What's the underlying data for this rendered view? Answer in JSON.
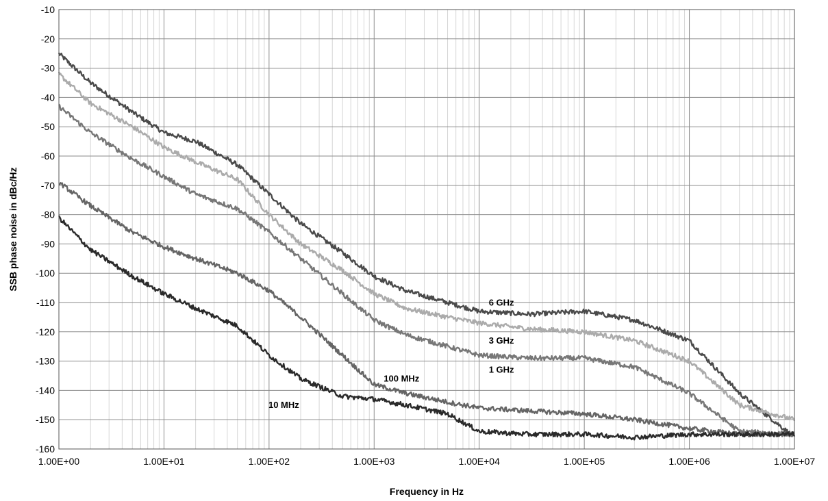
{
  "chart_data": {
    "type": "line",
    "title": "",
    "xlabel": "Frequency in Hz",
    "ylabel": "SSB phase noise in dBc/Hz",
    "x_scale": "log",
    "xlim": [
      1,
      10000000
    ],
    "ylim": [
      -160,
      -10
    ],
    "x_ticks": [
      1,
      10,
      100,
      1000,
      10000,
      100000,
      1000000,
      10000000
    ],
    "x_tick_labels": [
      "1.00E+00",
      "1.00E+01",
      "1.00E+02",
      "1.00E+03",
      "1.00E+04",
      "1.00E+05",
      "1.00E+06",
      "1.00E+07"
    ],
    "y_ticks": [
      -10,
      -20,
      -30,
      -40,
      -50,
      -60,
      -70,
      -80,
      -90,
      -100,
      -110,
      -120,
      -130,
      -140,
      -150,
      -160
    ],
    "grid": true,
    "legend": "none",
    "series": [
      {
        "name": "6 GHz",
        "color": "#4a4a4a",
        "label_at": [
          10000,
          -111
        ],
        "points": [
          [
            1,
            -25
          ],
          [
            2,
            -35
          ],
          [
            5,
            -45
          ],
          [
            10,
            -52
          ],
          [
            20,
            -55
          ],
          [
            50,
            -63
          ],
          [
            100,
            -73
          ],
          [
            200,
            -83
          ],
          [
            500,
            -93
          ],
          [
            1000,
            -101
          ],
          [
            2000,
            -106
          ],
          [
            5000,
            -110
          ],
          [
            10000,
            -113
          ],
          [
            30000,
            -114
          ],
          [
            100000,
            -113
          ],
          [
            300000,
            -116
          ],
          [
            1000000,
            -123
          ],
          [
            3000000,
            -141
          ],
          [
            10000000,
            -156
          ]
        ]
      },
      {
        "name": "3 GHz",
        "color": "#ababab",
        "label_at": [
          10000,
          -124
        ],
        "points": [
          [
            1,
            -32
          ],
          [
            2,
            -42
          ],
          [
            5,
            -50
          ],
          [
            10,
            -57
          ],
          [
            20,
            -62
          ],
          [
            50,
            -68
          ],
          [
            100,
            -80
          ],
          [
            200,
            -90
          ],
          [
            500,
            -99
          ],
          [
            1000,
            -107
          ],
          [
            2000,
            -112
          ],
          [
            5000,
            -115
          ],
          [
            10000,
            -117
          ],
          [
            30000,
            -119
          ],
          [
            100000,
            -120
          ],
          [
            300000,
            -123
          ],
          [
            1000000,
            -130
          ],
          [
            3000000,
            -145
          ],
          [
            10000000,
            -150
          ]
        ]
      },
      {
        "name": "1 GHz",
        "color": "#777777",
        "label_at": [
          10000,
          -134
        ],
        "points": [
          [
            1,
            -43
          ],
          [
            2,
            -52
          ],
          [
            5,
            -61
          ],
          [
            10,
            -67
          ],
          [
            20,
            -73
          ],
          [
            50,
            -78
          ],
          [
            100,
            -86
          ],
          [
            200,
            -95
          ],
          [
            500,
            -107
          ],
          [
            1000,
            -116
          ],
          [
            2000,
            -121
          ],
          [
            5000,
            -125
          ],
          [
            10000,
            -128
          ],
          [
            30000,
            -129
          ],
          [
            100000,
            -129
          ],
          [
            300000,
            -132
          ],
          [
            1000000,
            -141
          ],
          [
            3000000,
            -154
          ],
          [
            10000000,
            -155
          ]
        ]
      },
      {
        "name": "100 MHz",
        "color": "#656565",
        "label_at": [
          1000,
          -137
        ],
        "points": [
          [
            1,
            -69
          ],
          [
            2,
            -77
          ],
          [
            5,
            -86
          ],
          [
            10,
            -91
          ],
          [
            20,
            -95
          ],
          [
            50,
            -100
          ],
          [
            100,
            -106
          ],
          [
            200,
            -115
          ],
          [
            500,
            -128
          ],
          [
            1000,
            -138
          ],
          [
            2000,
            -141
          ],
          [
            5000,
            -144
          ],
          [
            10000,
            -146
          ],
          [
            30000,
            -147
          ],
          [
            100000,
            -148
          ],
          [
            300000,
            -150
          ],
          [
            1000000,
            -153
          ],
          [
            3000000,
            -155
          ],
          [
            10000000,
            -155
          ]
        ]
      },
      {
        "name": "10 MHz",
        "color": "#2a2a2a",
        "label_at": [
          80,
          -146
        ],
        "points": [
          [
            1,
            -81
          ],
          [
            2,
            -92
          ],
          [
            5,
            -101
          ],
          [
            10,
            -107
          ],
          [
            20,
            -112
          ],
          [
            50,
            -118
          ],
          [
            100,
            -128
          ],
          [
            200,
            -136
          ],
          [
            500,
            -142
          ],
          [
            1000,
            -143
          ],
          [
            2000,
            -145
          ],
          [
            5000,
            -148
          ],
          [
            10000,
            -154
          ],
          [
            30000,
            -155
          ],
          [
            100000,
            -155
          ],
          [
            300000,
            -156
          ],
          [
            1000000,
            -155
          ],
          [
            3000000,
            -155
          ],
          [
            10000000,
            -155
          ]
        ]
      }
    ]
  }
}
